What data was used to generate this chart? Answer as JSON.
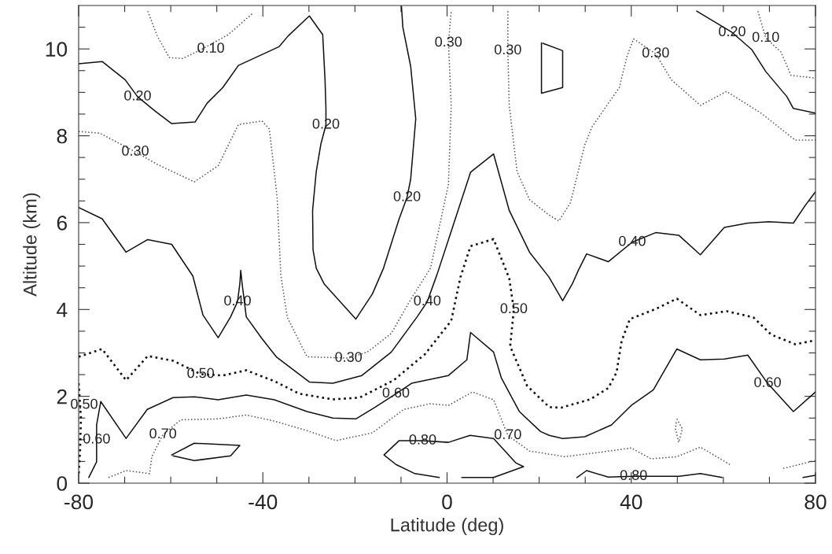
{
  "chart_data": {
    "type": "line",
    "xlabel": "Latitude (deg)",
    "ylabel": "Altitude (km)",
    "xlim": [
      -80,
      80
    ],
    "ylim": [
      0,
      11
    ],
    "xticks": [
      -80,
      {
        "value": -70,
        "label": null
      },
      {
        "value": -60,
        "label": null
      },
      {
        "value": -50,
        "label": null
      },
      -40,
      {
        "value": -30,
        "label": null
      },
      {
        "value": -20,
        "label": null
      },
      {
        "value": -10,
        "label": null
      },
      0,
      {
        "value": 10,
        "label": null
      },
      {
        "value": 20,
        "label": null
      },
      {
        "value": 30,
        "label": null
      },
      40,
      {
        "value": 50,
        "label": null
      },
      {
        "value": 60,
        "label": null
      },
      {
        "value": 70,
        "label": null
      },
      80
    ],
    "yticks": [
      0,
      {
        "value": 0.5,
        "label": null
      },
      {
        "value": 1,
        "label": null
      },
      {
        "value": 1.5,
        "label": null
      },
      2,
      {
        "value": 2.5,
        "label": null
      },
      {
        "value": 3,
        "label": null
      },
      {
        "value": 3.5,
        "label": null
      },
      4,
      {
        "value": 4.5,
        "label": null
      },
      {
        "value": 5,
        "label": null
      },
      {
        "value": 5.5,
        "label": null
      },
      6,
      {
        "value": 6.5,
        "label": null
      },
      {
        "value": 7,
        "label": null
      },
      {
        "value": 7.5,
        "label": null
      },
      8,
      {
        "value": 8.5,
        "label": null
      },
      {
        "value": 9,
        "label": null
      },
      {
        "value": 9.5,
        "label": null
      },
      10,
      {
        "value": 10.5,
        "label": null
      }
    ],
    "grid": false,
    "marker": "none",
    "series": [
      {
        "color": "#555555",
        "line_style": "dotted",
        "x": [
          -65.0,
          -62.9,
          -60.3,
          -57.4,
          -53.5,
          -47.5,
          -42.1
        ],
        "values": [
          10.87,
          10.29,
          9.8,
          9.78,
          9.98,
          10.33,
          10.83
        ]
      },
      {
        "color": "#555555",
        "line_style": "dotted",
        "x": [
          67.5,
          69.2,
          72.5,
          74.7,
          80.0
        ],
        "values": [
          10.87,
          10.25,
          9.93,
          9.39,
          9.33
        ]
      },
      {
        "color": "#111111",
        "line_style": "solid",
        "x": [
          -80,
          -74.9,
          -69.9,
          -67.2,
          -63.4,
          -59.8,
          -54.7,
          -52.1,
          -48.7,
          -45.3,
          -40.2,
          -36.5,
          -34.5,
          -29.9,
          -27.0,
          -26.5,
          -26.3,
          -26.3,
          -27.4,
          -28.4,
          -29.2,
          -29.1,
          -28.4,
          -26.7,
          -19.8,
          -16.2,
          -13.8,
          -10.4,
          -8.7,
          -7.9,
          -6.8,
          -7.9,
          -9.6,
          -9.9
        ],
        "values": [
          9.66,
          9.71,
          9.29,
          8.9,
          8.57,
          8.28,
          8.32,
          8.75,
          9.11,
          9.62,
          9.87,
          10.05,
          10.3,
          10.76,
          10.33,
          9.29,
          8.63,
          8.25,
          7.81,
          7.18,
          6.28,
          5.37,
          4.95,
          4.59,
          3.78,
          4.36,
          4.95,
          6.09,
          6.58,
          7.0,
          8.39,
          9.6,
          10.5,
          10.98
        ]
      },
      {
        "color": "#111111",
        "line_style": "solid",
        "x": [
          54.2,
          61.9,
          66.2,
          69.2,
          73.8,
          75.2,
          80.0
        ],
        "values": [
          10.87,
          10.38,
          9.98,
          9.48,
          8.9,
          8.63,
          8.52
        ]
      },
      {
        "color": "#555555",
        "line_style": "dotted",
        "x": [
          -80,
          -75.4,
          -67.7,
          -62.9,
          -54.9,
          -49.7,
          -45.3,
          -40.2,
          -38.6,
          -37.6,
          -36.9,
          -36.1,
          -34.7,
          -30.4,
          -21.4,
          -17.3,
          -12.1,
          -7.9,
          -3.6,
          0.3,
          0.9,
          0.3,
          0.9
        ],
        "values": [
          8.1,
          8.06,
          7.63,
          7.34,
          6.94,
          7.31,
          8.26,
          8.34,
          8.16,
          7.25,
          6.58,
          4.8,
          3.82,
          2.91,
          2.88,
          3.02,
          3.45,
          4.23,
          4.95,
          6.88,
          8.7,
          10.14,
          10.87
        ]
      },
      {
        "color": "#555555",
        "line_style": "dotted",
        "x": [
          13.2,
          13.2,
          13.5,
          15.2,
          17.9,
          22.2,
          24.3,
          26.8,
          29.9,
          31.5,
          37.4,
          39.1,
          40.5,
          45.3,
          48.7,
          55.0,
          60.7,
          68.2,
          75.6,
          80.0
        ],
        "values": [
          10.87,
          9.96,
          8.7,
          7.18,
          6.53,
          6.17,
          6.04,
          6.46,
          7.79,
          8.21,
          9.11,
          9.84,
          10.23,
          9.89,
          9.29,
          8.7,
          9.02,
          8.52,
          7.9,
          7.9
        ]
      },
      {
        "color": "#111111",
        "line_style": "solid",
        "x": [
          -80,
          -74.9,
          -69.7,
          -65.0,
          -59.8,
          -55.2,
          -53.0,
          -49.7,
          -47.0,
          -45.5,
          -45.0,
          -44.8,
          -44.5,
          -43.6,
          -40.2,
          -37.0,
          -29.9,
          -24.8,
          -18.5,
          -12.1,
          -6.5,
          -4.3,
          -2.2,
          0.9,
          5.1,
          10.1,
          13.5,
          17.9,
          22.1,
          25.1,
          27.2,
          28.5,
          30.3,
          35.0,
          40.2,
          45.3,
          50.3,
          55.0,
          60.2,
          65.3,
          69.9,
          75.2,
          77.8,
          80.0
        ],
        "values": [
          6.35,
          6.09,
          5.32,
          5.61,
          5.5,
          4.77,
          3.87,
          3.35,
          3.83,
          4.18,
          4.59,
          4.9,
          4.59,
          3.83,
          3.33,
          2.9,
          2.33,
          2.3,
          2.48,
          3.02,
          3.83,
          4.18,
          4.8,
          5.8,
          7.16,
          7.58,
          6.28,
          5.32,
          4.75,
          4.2,
          4.59,
          4.9,
          5.28,
          5.1,
          5.55,
          5.77,
          5.71,
          5.26,
          5.89,
          5.99,
          6.02,
          5.99,
          6.4,
          6.71
        ]
      },
      {
        "color": "#111111",
        "line_style": "dotted",
        "x": [
          -80,
          -74.9,
          -69.7,
          -65.0,
          -59.5,
          -53.5,
          -48.7,
          -43.6,
          -37.5,
          -32.1,
          -24.8,
          -19.0,
          -11.6,
          -4.8,
          0.9,
          2.9,
          5.1,
          10.1,
          13.5,
          14.5,
          13.7,
          17.4,
          22.2,
          24.8,
          31.1,
          35.0,
          36.8,
          37.9,
          39.7,
          45.3,
          49.9,
          55.0,
          60.7,
          66.5,
          70.4,
          75.6,
          80.0
        ],
        "values": [
          2.91,
          3.09,
          2.37,
          2.93,
          2.82,
          2.51,
          2.48,
          2.6,
          2.35,
          2.06,
          1.93,
          1.97,
          2.37,
          2.97,
          3.74,
          4.74,
          5.46,
          5.62,
          4.72,
          4.0,
          3.15,
          2.24,
          1.75,
          1.74,
          1.93,
          2.19,
          2.55,
          3.27,
          3.78,
          4.01,
          4.25,
          3.87,
          3.96,
          3.82,
          3.42,
          3.2,
          3.29
        ]
      },
      {
        "color": "#111111",
        "line_style": "dotted",
        "x": [
          -80,
          -79.5,
          -79.7,
          -80
        ],
        "values": [
          2.3,
          1.5,
          0.74,
          0.2
        ]
      },
      {
        "color": "#111111",
        "line_style": "solid",
        "x": [
          -77.8,
          -76.1,
          -76.1,
          -75.2,
          -69.7,
          -65.1,
          -59.5,
          -54.9,
          -49.7,
          -43.6,
          -37.5,
          -30.4,
          -24.8,
          -19.8,
          -15.6,
          -11.1,
          -7.7,
          0.3,
          4.3,
          5.1,
          10.1,
          11.8,
          15.7,
          20.3,
          22.2,
          25.1,
          29.9,
          35.7,
          40.0,
          44.8,
          49.9,
          55.0,
          60.2,
          65.3,
          69.6,
          75.2,
          80.0
        ],
        "values": [
          0.13,
          0.49,
          1.34,
          1.88,
          1.03,
          1.7,
          1.97,
          1.99,
          1.92,
          2.03,
          1.92,
          1.65,
          1.5,
          1.48,
          1.75,
          2.06,
          2.3,
          2.48,
          2.84,
          3.47,
          3.02,
          2.42,
          1.65,
          1.19,
          1.1,
          1.03,
          1.07,
          1.34,
          1.79,
          2.15,
          3.09,
          2.84,
          2.86,
          2.95,
          2.3,
          1.65,
          2.1
        ]
      },
      {
        "color": "#555555",
        "line_style": "dotted",
        "x": [
          -73.5,
          -69.7,
          -64.6,
          -64.1,
          -61.7,
          -57.8,
          -49.7,
          -43.6,
          -37.5,
          -30.4,
          -24.1,
          -16.2,
          -9.4,
          -3.6,
          0.3,
          5.5,
          10.1,
          13.2,
          17.9,
          22.2,
          25.5,
          32.3,
          40.0,
          44.3,
          49.9,
          55.0,
          61.4
        ],
        "values": [
          0.13,
          0.29,
          0.22,
          0.61,
          1.12,
          1.46,
          1.48,
          1.57,
          1.43,
          1.21,
          0.98,
          1.16,
          1.7,
          1.83,
          1.79,
          2.1,
          1.92,
          1.1,
          0.74,
          0.67,
          0.61,
          0.7,
          0.81,
          0.56,
          0.61,
          0.83,
          0.43
        ]
      },
      {
        "color": "#555555",
        "line_style": "dotted",
        "x": [
          73.0,
          80.0
        ],
        "values": [
          0.34,
          0.52
        ]
      },
      {
        "color": "#111111",
        "line_style": "solid",
        "x": [
          -1.7,
          -7.0,
          -11.1,
          -13.7,
          -10.4,
          -5.3,
          0.3,
          5.0,
          10.1,
          14.9,
          16.6,
          10.1,
          3.2
        ],
        "values": [
          0.13,
          0.22,
          0.43,
          0.65,
          0.98,
          0.98,
          0.94,
          1.1,
          1.03,
          0.47,
          0.38,
          0.13,
          0.13
        ]
      },
      {
        "color": "#111111",
        "line_style": "solid",
        "x": [
          28.2,
          30.3,
          35.0,
          40.5,
          46.0,
          50.4,
          55.0,
          59.7
        ],
        "values": [
          0.13,
          0.29,
          0.14,
          0.16,
          0.16,
          0.16,
          0.22,
          0.13
        ]
      },
      {
        "color": "#111111",
        "line_style": "solid",
        "x": [
          77.3,
          80.0
        ],
        "values": [
          0.13,
          0.18
        ]
      },
      {
        "color": "#111111",
        "line_style": "solid",
        "x": [
          20.5,
          20.5,
          25.1,
          25.1,
          20.8
        ],
        "values": [
          10.14,
          8.98,
          9.11,
          9.96,
          10.13
        ]
      },
      {
        "color": "#555555",
        "line_style": "dotted",
        "x": [
          49.9,
          51.1,
          50.3,
          49.6,
          49.8
        ],
        "values": [
          1.48,
          1.25,
          0.94,
          1.25,
          1.44
        ]
      },
      {
        "color": "#111111",
        "line_style": "solid",
        "x": [
          -59.8,
          -54.9,
          -45.0,
          -47.0,
          -54.9,
          -59.5
        ],
        "values": [
          0.65,
          0.92,
          0.87,
          0.63,
          0.52,
          0.63
        ]
      }
    ],
    "annotations": [
      {
        "text": "0.10",
        "x": -51.3,
        "y": 10.0
      },
      {
        "text": "0.10",
        "x": 69.2,
        "y": 10.25
      },
      {
        "text": "0.20",
        "x": -67.2,
        "y": 8.9
      },
      {
        "text": "0.20",
        "x": -26.3,
        "y": 8.25
      },
      {
        "text": "0.20",
        "x": -8.7,
        "y": 6.58
      },
      {
        "text": "0.20",
        "x": 61.9,
        "y": 10.38
      },
      {
        "text": "0.30",
        "x": -67.7,
        "y": 7.63
      },
      {
        "text": "0.30",
        "x": -21.4,
        "y": 2.88
      },
      {
        "text": "0.30",
        "x": 0.3,
        "y": 10.14
      },
      {
        "text": "0.30",
        "x": 13.2,
        "y": 9.96
      },
      {
        "text": "0.30",
        "x": 45.3,
        "y": 9.89
      },
      {
        "text": "0.40",
        "x": -45.5,
        "y": 4.18
      },
      {
        "text": "0.40",
        "x": -4.3,
        "y": 4.18
      },
      {
        "text": "0.40",
        "x": 40.2,
        "y": 5.55
      },
      {
        "text": "0.50",
        "x": -53.5,
        "y": 2.51
      },
      {
        "text": "0.50",
        "x": 14.5,
        "y": 4.0
      },
      {
        "text": "0.50",
        "x": -78.8,
        "y": 1.8
      },
      {
        "text": "0.60",
        "x": -76.1,
        "y": 1.0
      },
      {
        "text": "0.60",
        "x": -11.1,
        "y": 2.06
      },
      {
        "text": "0.60",
        "x": 69.6,
        "y": 2.3
      },
      {
        "text": "0.70",
        "x": -61.7,
        "y": 1.12
      },
      {
        "text": "0.70",
        "x": 13.2,
        "y": 1.1
      },
      {
        "text": "0.80",
        "x": -5.3,
        "y": 0.98
      },
      {
        "text": "0.80",
        "x": 40.5,
        "y": 0.16
      }
    ]
  }
}
